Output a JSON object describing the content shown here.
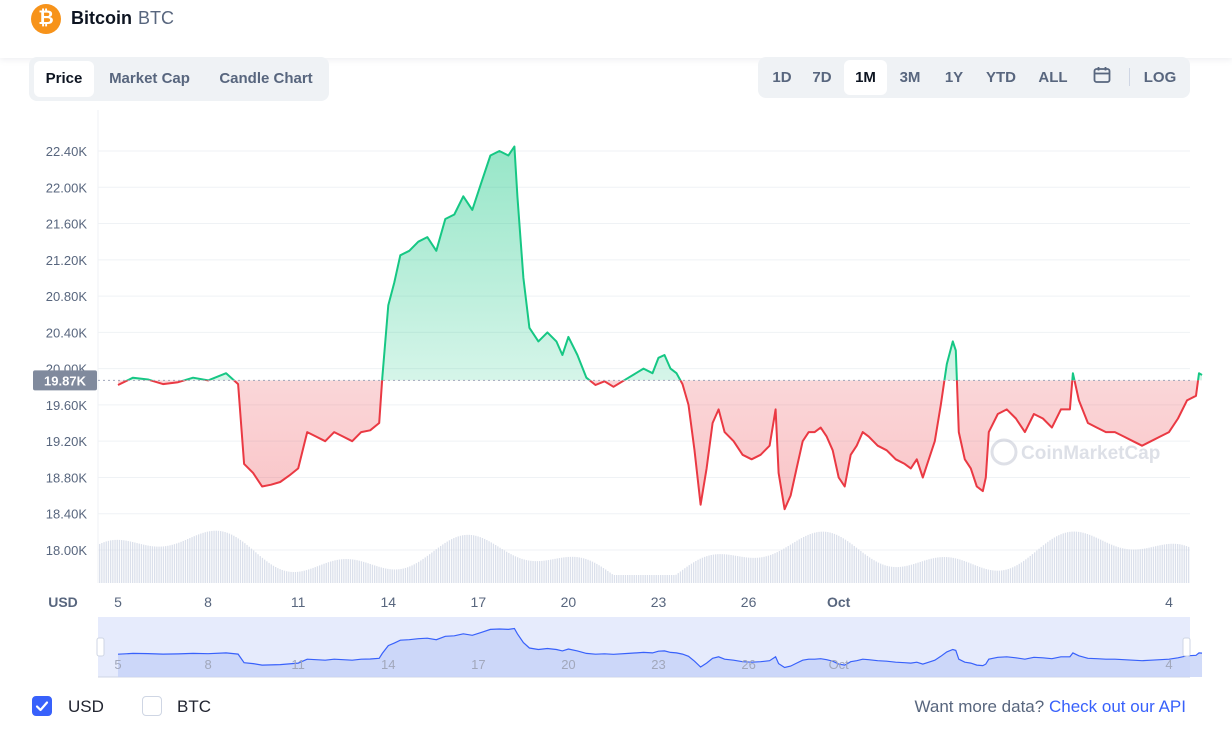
{
  "header": {
    "coin_name": "Bitcoin",
    "coin_symbol": "BTC",
    "logo_glyph": "₿"
  },
  "tabs_left": [
    {
      "label": "Price",
      "active": true
    },
    {
      "label": "Market Cap",
      "active": false
    },
    {
      "label": "Candle Chart",
      "active": false
    }
  ],
  "tabs_right": [
    {
      "label": "1D",
      "active": false
    },
    {
      "label": "7D",
      "active": false
    },
    {
      "label": "1M",
      "active": true
    },
    {
      "label": "3M",
      "active": false
    },
    {
      "label": "1Y",
      "active": false
    },
    {
      "label": "YTD",
      "active": false
    },
    {
      "label": "ALL",
      "active": false
    },
    {
      "label": "LOG",
      "active": false
    }
  ],
  "calendar_icon": "calendar-icon",
  "chart_data": {
    "type": "area",
    "currency_label": "USD",
    "y_ticks": [
      "22.40K",
      "22.00K",
      "21.60K",
      "21.20K",
      "20.80K",
      "20.40K",
      "20.00K",
      "19.60K",
      "19.20K",
      "18.80K",
      "18.40K",
      "18.00K"
    ],
    "x_ticks": [
      "5",
      "8",
      "11",
      "14",
      "17",
      "20",
      "23",
      "26",
      "Oct",
      "4"
    ],
    "ylim": [
      17700,
      22800
    ],
    "reference_price": 19870,
    "reference_label": "19.87K",
    "watermark": "CoinMarketCap",
    "up_color": "#16c784",
    "down_color": "#ea3943",
    "grid": true,
    "price_series": [
      [
        0,
        19820
      ],
      [
        0.5,
        19900
      ],
      [
        1,
        19880
      ],
      [
        1.5,
        19830
      ],
      [
        2,
        19850
      ],
      [
        2.5,
        19900
      ],
      [
        3,
        19870
      ],
      [
        3.6,
        19950
      ],
      [
        4,
        19830
      ],
      [
        4.2,
        18950
      ],
      [
        4.5,
        18850
      ],
      [
        4.8,
        18700
      ],
      [
        5.1,
        18720
      ],
      [
        5.4,
        18750
      ],
      [
        5.7,
        18820
      ],
      [
        6,
        18900
      ],
      [
        6.3,
        19300
      ],
      [
        6.6,
        19250
      ],
      [
        6.9,
        19200
      ],
      [
        7.2,
        19300
      ],
      [
        7.5,
        19250
      ],
      [
        7.8,
        19200
      ],
      [
        8.1,
        19300
      ],
      [
        8.4,
        19320
      ],
      [
        8.7,
        19400
      ],
      [
        8.8,
        19900
      ],
      [
        9,
        20700
      ],
      [
        9.2,
        20950
      ],
      [
        9.4,
        21250
      ],
      [
        9.7,
        21300
      ],
      [
        10,
        21400
      ],
      [
        10.3,
        21450
      ],
      [
        10.6,
        21300
      ],
      [
        10.9,
        21650
      ],
      [
        11.2,
        21700
      ],
      [
        11.5,
        21900
      ],
      [
        11.8,
        21750
      ],
      [
        12.1,
        22050
      ],
      [
        12.4,
        22350
      ],
      [
        12.7,
        22400
      ],
      [
        13,
        22350
      ],
      [
        13.2,
        22450
      ],
      [
        13.3,
        21900
      ],
      [
        13.5,
        21000
      ],
      [
        13.7,
        20450
      ],
      [
        14,
        20300
      ],
      [
        14.3,
        20400
      ],
      [
        14.6,
        20300
      ],
      [
        14.8,
        20150
      ],
      [
        15,
        20350
      ],
      [
        15.3,
        20150
      ],
      [
        15.6,
        19900
      ],
      [
        15.9,
        19820
      ],
      [
        16.2,
        19860
      ],
      [
        16.5,
        19800
      ],
      [
        17,
        19900
      ],
      [
        17.5,
        20000
      ],
      [
        17.8,
        19950
      ],
      [
        18,
        20120
      ],
      [
        18.2,
        20150
      ],
      [
        18.4,
        20000
      ],
      [
        18.6,
        19950
      ],
      [
        18.8,
        19830
      ],
      [
        19,
        19600
      ],
      [
        19.2,
        19100
      ],
      [
        19.4,
        18500
      ],
      [
        19.6,
        18900
      ],
      [
        19.8,
        19400
      ],
      [
        20,
        19550
      ],
      [
        20.2,
        19300
      ],
      [
        20.5,
        19200
      ],
      [
        20.8,
        19050
      ],
      [
        21.1,
        19000
      ],
      [
        21.4,
        19050
      ],
      [
        21.7,
        19150
      ],
      [
        21.9,
        19550
      ],
      [
        22,
        18850
      ],
      [
        22.2,
        18450
      ],
      [
        22.4,
        18600
      ],
      [
        22.6,
        18900
      ],
      [
        22.8,
        19200
      ],
      [
        23,
        19300
      ],
      [
        23.2,
        19300
      ],
      [
        23.4,
        19350
      ],
      [
        23.6,
        19250
      ],
      [
        23.8,
        19100
      ],
      [
        24,
        18800
      ],
      [
        24.2,
        18700
      ],
      [
        24.4,
        19050
      ],
      [
        24.6,
        19150
      ],
      [
        24.8,
        19300
      ],
      [
        25,
        19250
      ],
      [
        25.3,
        19150
      ],
      [
        25.6,
        19100
      ],
      [
        25.9,
        19000
      ],
      [
        26.2,
        18950
      ],
      [
        26.4,
        18900
      ],
      [
        26.6,
        19000
      ],
      [
        26.8,
        18800
      ],
      [
        27,
        19000
      ],
      [
        27.2,
        19200
      ],
      [
        27.4,
        19600
      ],
      [
        27.6,
        20050
      ],
      [
        27.8,
        20300
      ],
      [
        27.9,
        20200
      ],
      [
        28,
        19300
      ],
      [
        28.2,
        19000
      ],
      [
        28.4,
        18900
      ],
      [
        28.6,
        18700
      ],
      [
        28.8,
        18650
      ],
      [
        28.9,
        18800
      ],
      [
        29,
        19300
      ],
      [
        29.3,
        19500
      ],
      [
        29.6,
        19550
      ],
      [
        29.9,
        19450
      ],
      [
        30.2,
        19300
      ],
      [
        30.5,
        19500
      ],
      [
        30.8,
        19450
      ],
      [
        31.1,
        19350
      ],
      [
        31.4,
        19550
      ],
      [
        31.7,
        19550
      ],
      [
        31.8,
        19950
      ],
      [
        32,
        19650
      ],
      [
        32.3,
        19400
      ],
      [
        32.6,
        19350
      ],
      [
        32.9,
        19300
      ],
      [
        33.2,
        19300
      ],
      [
        33.5,
        19250
      ],
      [
        33.8,
        19200
      ],
      [
        34.1,
        19150
      ],
      [
        34.4,
        19200
      ],
      [
        34.7,
        19250
      ],
      [
        35,
        19300
      ],
      [
        35.3,
        19450
      ],
      [
        35.6,
        19650
      ],
      [
        35.9,
        19700
      ],
      [
        36,
        19950
      ],
      [
        36.1,
        19930
      ]
    ]
  },
  "footer": {
    "usd_label": "USD",
    "btc_label": "BTC",
    "api_prefix": "Want more data?",
    "api_link": "Check out our API"
  }
}
